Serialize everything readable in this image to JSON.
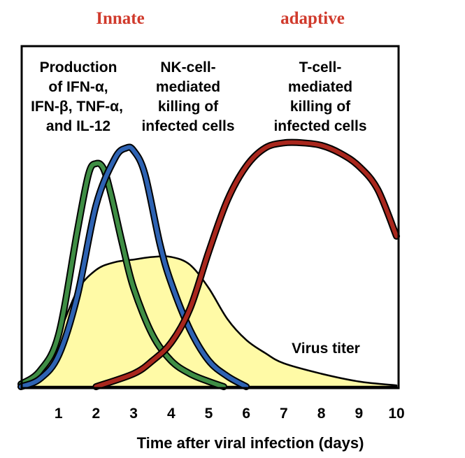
{
  "chart_data": {
    "type": "area",
    "headers": [
      {
        "text": "Innate",
        "color": "#d03a2c"
      },
      {
        "text": "adaptive",
        "color": "#d03a2c"
      }
    ],
    "xlabel": "Time after viral infection (days)",
    "ylabel": "",
    "xlim": [
      0,
      10
    ],
    "ylim": [
      0,
      1
    ],
    "x_ticks": [
      1,
      2,
      3,
      4,
      5,
      6,
      7,
      8,
      9,
      10
    ],
    "series": [
      {
        "name": "Virus titer",
        "color": "#fffaa6",
        "x": [
          0,
          0.5,
          1,
          1.5,
          2,
          2.5,
          3,
          3.5,
          4,
          4.5,
          5,
          5.5,
          6,
          6.5,
          7,
          8,
          9,
          10
        ],
        "y": [
          0.01,
          0.06,
          0.2,
          0.37,
          0.45,
          0.48,
          0.49,
          0.5,
          0.5,
          0.47,
          0.38,
          0.26,
          0.18,
          0.13,
          0.09,
          0.05,
          0.02,
          0.005
        ]
      },
      {
        "name": "Production of IFN-α, IFN-β, TNF-α, and IL-12",
        "color": "#3f8e45",
        "x": [
          0,
          0.5,
          1,
          1.5,
          1.8,
          2,
          2.2,
          2.4,
          2.7,
          3,
          3.5,
          4,
          4.5,
          5,
          5.4
        ],
        "y": [
          0.01,
          0.06,
          0.2,
          0.6,
          0.82,
          0.86,
          0.84,
          0.74,
          0.55,
          0.38,
          0.2,
          0.1,
          0.05,
          0.02,
          0.0
        ]
      },
      {
        "name": "NK-cell-mediated killing of infected cells",
        "color": "#2e63b3",
        "x": [
          0,
          0.5,
          1,
          1.5,
          2,
          2.5,
          2.8,
          3,
          3.3,
          3.7,
          4,
          4.5,
          5,
          5.5,
          6
        ],
        "y": [
          0.0,
          0.03,
          0.12,
          0.35,
          0.7,
          0.88,
          0.92,
          0.91,
          0.82,
          0.55,
          0.4,
          0.22,
          0.1,
          0.04,
          0.0
        ]
      },
      {
        "name": "T-cell-mediated killing of infected cells",
        "color": "#a9271d",
        "x": [
          2,
          3,
          3.5,
          4,
          4.5,
          5,
          5.5,
          6,
          6.5,
          7,
          7.5,
          8,
          8.5,
          9,
          9.5,
          10
        ],
        "y": [
          0.0,
          0.05,
          0.1,
          0.17,
          0.3,
          0.52,
          0.72,
          0.85,
          0.92,
          0.94,
          0.94,
          0.93,
          0.9,
          0.85,
          0.76,
          0.58
        ]
      }
    ],
    "labels": [
      {
        "lines": [
          "Production",
          "of IFN-α,",
          "IFN-β, TNF-α,",
          "and IL-12"
        ]
      },
      {
        "lines": [
          "NK-cell-",
          "mediated",
          "killing of",
          "infected cells"
        ]
      },
      {
        "lines": [
          "T-cell-",
          "mediated",
          "killing of",
          "infected cells"
        ]
      },
      {
        "lines": [
          "Virus titer"
        ]
      }
    ]
  }
}
